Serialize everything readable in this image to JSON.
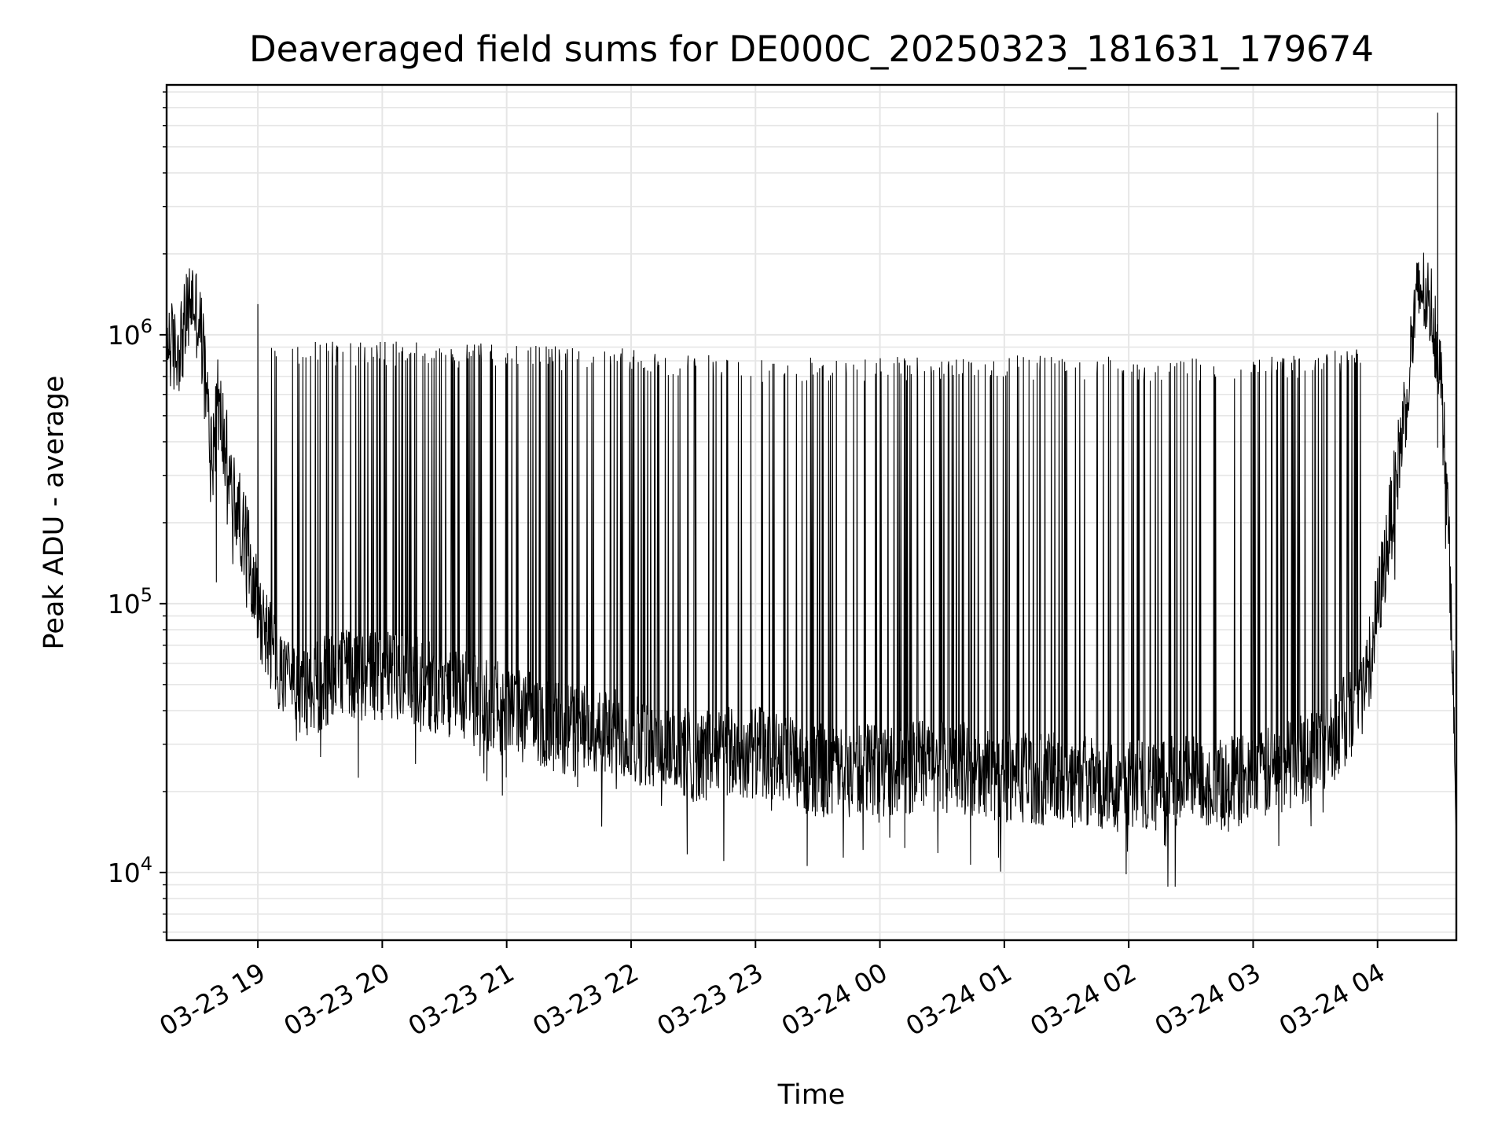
{
  "chart_data": {
    "type": "line",
    "title": "Deaveraged field sums for DE000C_20250323_181631_179674",
    "xlabel": "Time",
    "ylabel": "Peak ADU - average",
    "x_range": [
      "2025-03-23 18:16",
      "2025-03-24 04:38"
    ],
    "ylim": [
      5600,
      8500000
    ],
    "yscale": "log",
    "x_ticks": [
      {
        "label": "03-23 19",
        "value": "2025-03-23 19:00"
      },
      {
        "label": "03-23 20",
        "value": "2025-03-23 20:00"
      },
      {
        "label": "03-23 21",
        "value": "2025-03-23 21:00"
      },
      {
        "label": "03-23 22",
        "value": "2025-03-23 22:00"
      },
      {
        "label": "03-23 23",
        "value": "2025-03-23 23:00"
      },
      {
        "label": "03-24 00",
        "value": "2025-03-24 00:00"
      },
      {
        "label": "03-24 01",
        "value": "2025-03-24 01:00"
      },
      {
        "label": "03-24 02",
        "value": "2025-03-24 02:00"
      },
      {
        "label": "03-24 03",
        "value": "2025-03-24 03:00"
      },
      {
        "label": "03-24 04",
        "value": "2025-03-24 04:00"
      }
    ],
    "y_ticks": [
      {
        "base": "10",
        "exp": "4",
        "value": 10000
      },
      {
        "base": "10",
        "exp": "5",
        "value": 100000
      },
      {
        "base": "10",
        "exp": "6",
        "value": 1000000
      }
    ],
    "grid": true,
    "grid_color": "#e6e6e6",
    "line_color": "#000000",
    "series": [
      {
        "x": [
          "2025-03-23 18:16",
          "2025-03-23 18:20",
          "2025-03-23 18:24",
          "2025-03-23 18:28",
          "2025-03-23 18:32",
          "2025-03-23 18:34",
          "2025-03-23 18:36",
          "2025-03-23 18:38",
          "2025-03-23 18:40",
          "2025-03-23 18:44",
          "2025-03-23 18:48",
          "2025-03-23 18:52",
          "2025-03-23 18:56",
          "2025-03-23 19:00",
          "2025-03-23 19:06",
          "2025-03-23 19:12",
          "2025-03-23 19:20",
          "2025-03-23 19:40",
          "2025-03-23 20:00",
          "2025-03-23 20:30",
          "2025-03-23 21:00",
          "2025-03-23 21:30",
          "2025-03-23 22:00",
          "2025-03-23 22:30",
          "2025-03-23 23:00",
          "2025-03-23 23:30",
          "2025-03-24 00:00",
          "2025-03-24 00:30",
          "2025-03-24 01:00",
          "2025-03-24 01:30",
          "2025-03-24 02:00",
          "2025-03-24 02:30",
          "2025-03-24 03:00",
          "2025-03-24 03:30",
          "2025-03-24 03:50",
          "2025-03-24 03:56",
          "2025-03-24 04:02",
          "2025-03-24 04:08",
          "2025-03-24 04:14",
          "2025-03-24 04:18",
          "2025-03-24 04:21",
          "2025-03-24 04:24",
          "2025-03-24 04:27",
          "2025-03-24 04:30",
          "2025-03-24 04:33",
          "2025-03-24 04:36",
          "2025-03-24 04:38"
        ],
        "y": [
          1000000,
          850000,
          1000000,
          1400000,
          1100000,
          800000,
          500000,
          350000,
          600000,
          400000,
          250000,
          200000,
          150000,
          100000,
          70000,
          50000,
          45000,
          55000,
          55000,
          48000,
          40000,
          34000,
          32000,
          27000,
          28000,
          24000,
          24000,
          25000,
          23000,
          22000,
          21000,
          22000,
          22000,
          28000,
          40000,
          60000,
          120000,
          250000,
          600000,
          1200000,
          1500000,
          1350000,
          1200000,
          800000,
          300000,
          80000,
          12000
        ],
        "spike_tops": {
          "2025-03-23 19:10": 900000,
          "2025-03-23 20:00": 900000,
          "2025-03-23 21:00": 880000,
          "2025-03-23 22:00": 850000,
          "2025-03-23 23:00": 780000,
          "2025-03-24 00:00": 790000,
          "2025-03-24 01:00": 800000,
          "2025-03-24 02:00": 790000,
          "2025-03-24 03:00": 780000,
          "2025-03-24 03:50": 850000
        },
        "annotated_points": [
          {
            "x": "2025-03-23 18:40",
            "y": 120000
          },
          {
            "x": "2025-03-23 19:00",
            "y": 1300000
          },
          {
            "x": "2025-03-24 04:29",
            "y": 6700000
          },
          {
            "x": "2025-03-24 04:29",
            "y": 380000
          }
        ]
      }
    ]
  }
}
